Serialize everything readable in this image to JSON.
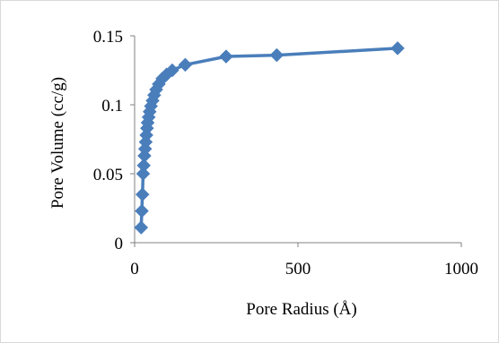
{
  "chart_data": {
    "type": "line",
    "title": "",
    "xlabel": "Pore Radius (Å)",
    "ylabel": "Pore Volume (cc/g)",
    "xlim": [
      0,
      1000
    ],
    "ylim": [
      0,
      0.15
    ],
    "x_ticks": [
      0,
      500,
      1000
    ],
    "y_ticks": [
      0,
      0.05,
      0.1,
      0.15
    ],
    "x_tick_labels": [
      "0",
      "500",
      "1000"
    ],
    "y_tick_labels": [
      "0",
      "0.05",
      "0.1",
      "0.15"
    ],
    "grid": false,
    "legend": "none",
    "marker": "diamond",
    "color": "#4a7ebb",
    "series": [
      {
        "x": [
          20,
          22,
          24,
          26,
          28,
          30,
          32,
          34,
          36,
          38,
          40,
          43,
          46,
          50,
          55,
          60,
          66,
          74,
          85,
          98,
          115,
          155,
          280,
          435,
          805
        ],
        "y": [
          0.011,
          0.023,
          0.035,
          0.05,
          0.056,
          0.063,
          0.068,
          0.073,
          0.078,
          0.083,
          0.087,
          0.091,
          0.095,
          0.099,
          0.103,
          0.107,
          0.111,
          0.115,
          0.119,
          0.122,
          0.125,
          0.129,
          0.135,
          0.136,
          0.141
        ]
      }
    ]
  }
}
